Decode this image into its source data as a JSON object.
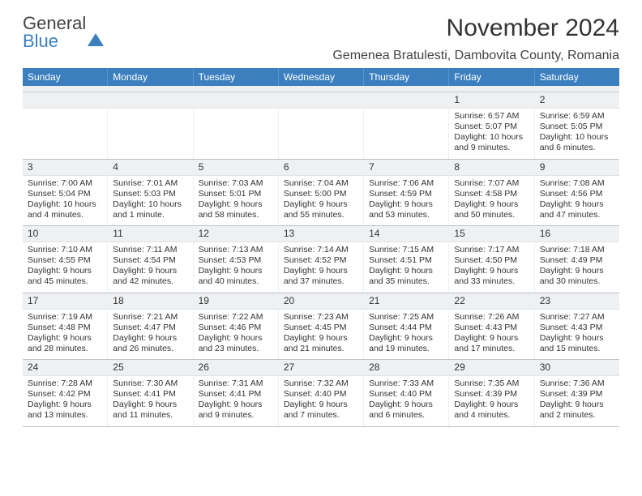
{
  "logo": {
    "line1": "General",
    "line2": "Blue"
  },
  "header": {
    "title": "November 2024",
    "location": "Gemenea Bratulesti, Dambovita County, Romania",
    "title_fontsize": 30,
    "location_fontsize": 16
  },
  "colors": {
    "header_bar": "#3b7fbf",
    "header_text": "#ffffff",
    "daynum_bg": "#eef0f2",
    "border": "#b9c0c7",
    "body_text": "#333333"
  },
  "weekdays": [
    "Sunday",
    "Monday",
    "Tuesday",
    "Wednesday",
    "Thursday",
    "Friday",
    "Saturday"
  ],
  "weeks": [
    [
      {
        "num": "",
        "l1": "",
        "l2": "",
        "l3": "",
        "l4": ""
      },
      {
        "num": "",
        "l1": "",
        "l2": "",
        "l3": "",
        "l4": ""
      },
      {
        "num": "",
        "l1": "",
        "l2": "",
        "l3": "",
        "l4": ""
      },
      {
        "num": "",
        "l1": "",
        "l2": "",
        "l3": "",
        "l4": ""
      },
      {
        "num": "",
        "l1": "",
        "l2": "",
        "l3": "",
        "l4": ""
      },
      {
        "num": "1",
        "l1": "Sunrise: 6:57 AM",
        "l2": "Sunset: 5:07 PM",
        "l3": "Daylight: 10 hours",
        "l4": "and 9 minutes."
      },
      {
        "num": "2",
        "l1": "Sunrise: 6:59 AM",
        "l2": "Sunset: 5:05 PM",
        "l3": "Daylight: 10 hours",
        "l4": "and 6 minutes."
      }
    ],
    [
      {
        "num": "3",
        "l1": "Sunrise: 7:00 AM",
        "l2": "Sunset: 5:04 PM",
        "l3": "Daylight: 10 hours",
        "l4": "and 4 minutes."
      },
      {
        "num": "4",
        "l1": "Sunrise: 7:01 AM",
        "l2": "Sunset: 5:03 PM",
        "l3": "Daylight: 10 hours",
        "l4": "and 1 minute."
      },
      {
        "num": "5",
        "l1": "Sunrise: 7:03 AM",
        "l2": "Sunset: 5:01 PM",
        "l3": "Daylight: 9 hours",
        "l4": "and 58 minutes."
      },
      {
        "num": "6",
        "l1": "Sunrise: 7:04 AM",
        "l2": "Sunset: 5:00 PM",
        "l3": "Daylight: 9 hours",
        "l4": "and 55 minutes."
      },
      {
        "num": "7",
        "l1": "Sunrise: 7:06 AM",
        "l2": "Sunset: 4:59 PM",
        "l3": "Daylight: 9 hours",
        "l4": "and 53 minutes."
      },
      {
        "num": "8",
        "l1": "Sunrise: 7:07 AM",
        "l2": "Sunset: 4:58 PM",
        "l3": "Daylight: 9 hours",
        "l4": "and 50 minutes."
      },
      {
        "num": "9",
        "l1": "Sunrise: 7:08 AM",
        "l2": "Sunset: 4:56 PM",
        "l3": "Daylight: 9 hours",
        "l4": "and 47 minutes."
      }
    ],
    [
      {
        "num": "10",
        "l1": "Sunrise: 7:10 AM",
        "l2": "Sunset: 4:55 PM",
        "l3": "Daylight: 9 hours",
        "l4": "and 45 minutes."
      },
      {
        "num": "11",
        "l1": "Sunrise: 7:11 AM",
        "l2": "Sunset: 4:54 PM",
        "l3": "Daylight: 9 hours",
        "l4": "and 42 minutes."
      },
      {
        "num": "12",
        "l1": "Sunrise: 7:13 AM",
        "l2": "Sunset: 4:53 PM",
        "l3": "Daylight: 9 hours",
        "l4": "and 40 minutes."
      },
      {
        "num": "13",
        "l1": "Sunrise: 7:14 AM",
        "l2": "Sunset: 4:52 PM",
        "l3": "Daylight: 9 hours",
        "l4": "and 37 minutes."
      },
      {
        "num": "14",
        "l1": "Sunrise: 7:15 AM",
        "l2": "Sunset: 4:51 PM",
        "l3": "Daylight: 9 hours",
        "l4": "and 35 minutes."
      },
      {
        "num": "15",
        "l1": "Sunrise: 7:17 AM",
        "l2": "Sunset: 4:50 PM",
        "l3": "Daylight: 9 hours",
        "l4": "and 33 minutes."
      },
      {
        "num": "16",
        "l1": "Sunrise: 7:18 AM",
        "l2": "Sunset: 4:49 PM",
        "l3": "Daylight: 9 hours",
        "l4": "and 30 minutes."
      }
    ],
    [
      {
        "num": "17",
        "l1": "Sunrise: 7:19 AM",
        "l2": "Sunset: 4:48 PM",
        "l3": "Daylight: 9 hours",
        "l4": "and 28 minutes."
      },
      {
        "num": "18",
        "l1": "Sunrise: 7:21 AM",
        "l2": "Sunset: 4:47 PM",
        "l3": "Daylight: 9 hours",
        "l4": "and 26 minutes."
      },
      {
        "num": "19",
        "l1": "Sunrise: 7:22 AM",
        "l2": "Sunset: 4:46 PM",
        "l3": "Daylight: 9 hours",
        "l4": "and 23 minutes."
      },
      {
        "num": "20",
        "l1": "Sunrise: 7:23 AM",
        "l2": "Sunset: 4:45 PM",
        "l3": "Daylight: 9 hours",
        "l4": "and 21 minutes."
      },
      {
        "num": "21",
        "l1": "Sunrise: 7:25 AM",
        "l2": "Sunset: 4:44 PM",
        "l3": "Daylight: 9 hours",
        "l4": "and 19 minutes."
      },
      {
        "num": "22",
        "l1": "Sunrise: 7:26 AM",
        "l2": "Sunset: 4:43 PM",
        "l3": "Daylight: 9 hours",
        "l4": "and 17 minutes."
      },
      {
        "num": "23",
        "l1": "Sunrise: 7:27 AM",
        "l2": "Sunset: 4:43 PM",
        "l3": "Daylight: 9 hours",
        "l4": "and 15 minutes."
      }
    ],
    [
      {
        "num": "24",
        "l1": "Sunrise: 7:28 AM",
        "l2": "Sunset: 4:42 PM",
        "l3": "Daylight: 9 hours",
        "l4": "and 13 minutes."
      },
      {
        "num": "25",
        "l1": "Sunrise: 7:30 AM",
        "l2": "Sunset: 4:41 PM",
        "l3": "Daylight: 9 hours",
        "l4": "and 11 minutes."
      },
      {
        "num": "26",
        "l1": "Sunrise: 7:31 AM",
        "l2": "Sunset: 4:41 PM",
        "l3": "Daylight: 9 hours",
        "l4": "and 9 minutes."
      },
      {
        "num": "27",
        "l1": "Sunrise: 7:32 AM",
        "l2": "Sunset: 4:40 PM",
        "l3": "Daylight: 9 hours",
        "l4": "and 7 minutes."
      },
      {
        "num": "28",
        "l1": "Sunrise: 7:33 AM",
        "l2": "Sunset: 4:40 PM",
        "l3": "Daylight: 9 hours",
        "l4": "and 6 minutes."
      },
      {
        "num": "29",
        "l1": "Sunrise: 7:35 AM",
        "l2": "Sunset: 4:39 PM",
        "l3": "Daylight: 9 hours",
        "l4": "and 4 minutes."
      },
      {
        "num": "30",
        "l1": "Sunrise: 7:36 AM",
        "l2": "Sunset: 4:39 PM",
        "l3": "Daylight: 9 hours",
        "l4": "and 2 minutes."
      }
    ]
  ]
}
